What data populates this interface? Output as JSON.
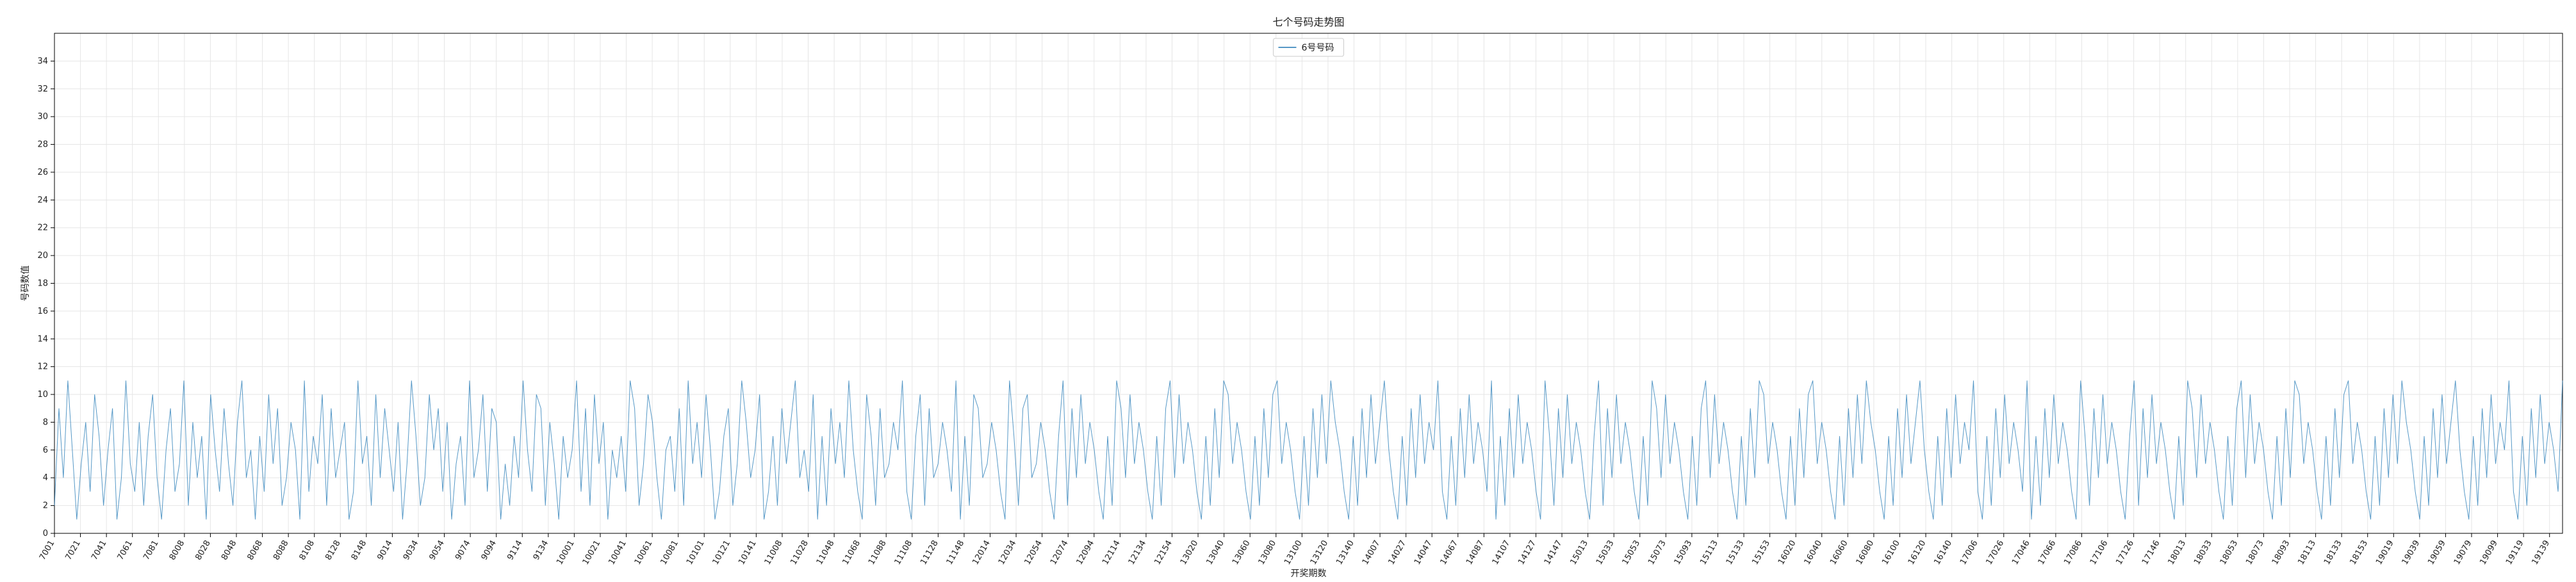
{
  "chart_data": {
    "type": "line",
    "title": "七个号码走势图",
    "xlabel": "开奖期数",
    "ylabel": "号码数值",
    "ylim": [
      0,
      36
    ],
    "yticks": [
      0,
      2,
      4,
      6,
      8,
      10,
      12,
      14,
      16,
      18,
      20,
      22,
      24,
      26,
      28,
      30,
      32,
      34
    ],
    "grid": true,
    "legend_position": "top-center",
    "line_color": "#1f77b4",
    "x_ticks": [
      "7001",
      "7021",
      "7041",
      "7061",
      "7081",
      "8008",
      "8028",
      "8048",
      "8068",
      "8088",
      "8108",
      "8128",
      "8148",
      "9014",
      "9034",
      "9054",
      "9074",
      "9094",
      "9114",
      "9134",
      "10001",
      "10021",
      "10041",
      "10061",
      "10081",
      "10101",
      "10121",
      "10141",
      "11008",
      "11028",
      "11048",
      "11068",
      "11088",
      "11108",
      "11128",
      "11148",
      "12014",
      "12034",
      "12054",
      "12074",
      "12094",
      "12114",
      "12134",
      "12154",
      "13020",
      "13040",
      "13060",
      "13080",
      "13100",
      "13120",
      "13140",
      "14007",
      "14027",
      "14047",
      "14067",
      "14087",
      "14107",
      "14127",
      "14147",
      "15013",
      "15033",
      "15053",
      "15073",
      "15093",
      "15113",
      "15133",
      "15153",
      "16020",
      "16040",
      "16060",
      "16080",
      "16100",
      "16120",
      "16140",
      "17006",
      "17026",
      "17046",
      "17066",
      "17086",
      "17106",
      "17126",
      "17146",
      "18013",
      "18033",
      "18053",
      "18073",
      "18093",
      "18113",
      "18133",
      "18153",
      "19019",
      "19039",
      "19059",
      "19079",
      "19099",
      "19119",
      "19139"
    ],
    "series": [
      {
        "name": "6号号码",
        "values": [
          2,
          9,
          4,
          11,
          6,
          1,
          5,
          8,
          3,
          10,
          7,
          2,
          6,
          9,
          1,
          4,
          11,
          5,
          3,
          8,
          2,
          7,
          10,
          4,
          1,
          6,
          9,
          3,
          5,
          11,
          2,
          8,
          4,
          7,
          1,
          10,
          6,
          3,
          9,
          5,
          2,
          8,
          11,
          4,
          6,
          1,
          7,
          3,
          10,
          5,
          9,
          2,
          4,
          8,
          6,
          1,
          11,
          3,
          7,
          5,
          10,
          2,
          9,
          4,
          6,
          8,
          1,
          3,
          11,
          5,
          7,
          2,
          10,
          4,
          9,
          6,
          3,
          8,
          1,
          5,
          11,
          7,
          2,
          4,
          10,
          6,
          9,
          3,
          8,
          1,
          5,
          7,
          2,
          11,
          4,
          6,
          10,
          3,
          9,
          8,
          1,
          5,
          2,
          7,
          4,
          11,
          6,
          3,
          10,
          9,
          2,
          8,
          5,
          1,
          7,
          4,
          6,
          11,
          3,
          9,
          2,
          10,
          5,
          8,
          1,
          6,
          4,
          7,
          3,
          11,
          9,
          2,
          5,
          10,
          8,
          4,
          1,
          6,
          7,
          3,
          9,
          2,
          11,
          5,
          8,
          4,
          10,
          6,
          1,
          3,
          7,
          9,
          2,
          5,
          11,
          8,
          4,
          6,
          10,
          1,
          3,
          7,
          2,
          9,
          5,
          8,
          11,
          4,
          6,
          3,
          10,
          1,
          7,
          2,
          9,
          5,
          8,
          4,
          11,
          6,
          3,
          1,
          10,
          7,
          2,
          9,
          4,
          5,
          8,
          6,
          11,
          3,
          1,
          7,
          10,
          2,
          9,
          4,
          5,
          8,
          6,
          3,
          11,
          1,
          7,
          2,
          10,
          9,
          4,
          5,
          8,
          6,
          3,
          1,
          11,
          7,
          2,
          9,
          10,
          4,
          5,
          8,
          6,
          3,
          1,
          7,
          11,
          2,
          9,
          4,
          10,
          5,
          8,
          6,
          3,
          1,
          7,
          2,
          11,
          9,
          4,
          10,
          5,
          8,
          6,
          3,
          1,
          7,
          2,
          9,
          11,
          4,
          10,
          5,
          8,
          6,
          3,
          1,
          7,
          2,
          9,
          4,
          11,
          10,
          5,
          8,
          6,
          3,
          1,
          7,
          2,
          9,
          4,
          10,
          11,
          5,
          8,
          6,
          3,
          1,
          7,
          2,
          9,
          4,
          10,
          5,
          11,
          8,
          6,
          3,
          1,
          7,
          2,
          9,
          4,
          10,
          5,
          8,
          11,
          6,
          3,
          1,
          7,
          2,
          9,
          4,
          10,
          5,
          8,
          6,
          11,
          3,
          1,
          7,
          2,
          9,
          4,
          10,
          5,
          8,
          6,
          3,
          11,
          1,
          7,
          2,
          9,
          4,
          10,
          5,
          8,
          6,
          3,
          1,
          11,
          7,
          2,
          9,
          4,
          10,
          5,
          8,
          6,
          3,
          1,
          7,
          11,
          2,
          9,
          4,
          10,
          5,
          8,
          6,
          3,
          1,
          7,
          2,
          11,
          9,
          4,
          10,
          5,
          8,
          6,
          3,
          1,
          7,
          2,
          9,
          11,
          4,
          10,
          5,
          8,
          6,
          3,
          1,
          7,
          2,
          9,
          4,
          11,
          10,
          5,
          8,
          6,
          3,
          1,
          7,
          2,
          9,
          4,
          10,
          11,
          5,
          8,
          6,
          3,
          1,
          7,
          2,
          9,
          4,
          10,
          5,
          11,
          8,
          6,
          3,
          1,
          7,
          2,
          9,
          4,
          10,
          5,
          8,
          11,
          6,
          3,
          1,
          7,
          2,
          9,
          4,
          10,
          5,
          8,
          6,
          11,
          3,
          1,
          7,
          2,
          9,
          4,
          10,
          5,
          8,
          6,
          3,
          11,
          1,
          7,
          2,
          9,
          4,
          10,
          5,
          8,
          6,
          3,
          1,
          11,
          7,
          2,
          9,
          4,
          10,
          5,
          8,
          6,
          3,
          1,
          7,
          11,
          2,
          9,
          4,
          10,
          5,
          8,
          6,
          3,
          1,
          7,
          2,
          11,
          9,
          4,
          10,
          5,
          8,
          6,
          3,
          1,
          7,
          2,
          9,
          11,
          4,
          10,
          5,
          8,
          6,
          3,
          1,
          7,
          2,
          9,
          4,
          11,
          10,
          5,
          8,
          6,
          3,
          1,
          7,
          2,
          9,
          4,
          10,
          11,
          5,
          8,
          6,
          3,
          1,
          7,
          2,
          9,
          4,
          10,
          5,
          11,
          8,
          6,
          3,
          1,
          7,
          2,
          9,
          4,
          10,
          5,
          8,
          11,
          6,
          3,
          1,
          7,
          2,
          9,
          4,
          10,
          5,
          8,
          6,
          11,
          3,
          1,
          7,
          2,
          9,
          4,
          10,
          5,
          8,
          6,
          3,
          11
        ]
      }
    ]
  }
}
